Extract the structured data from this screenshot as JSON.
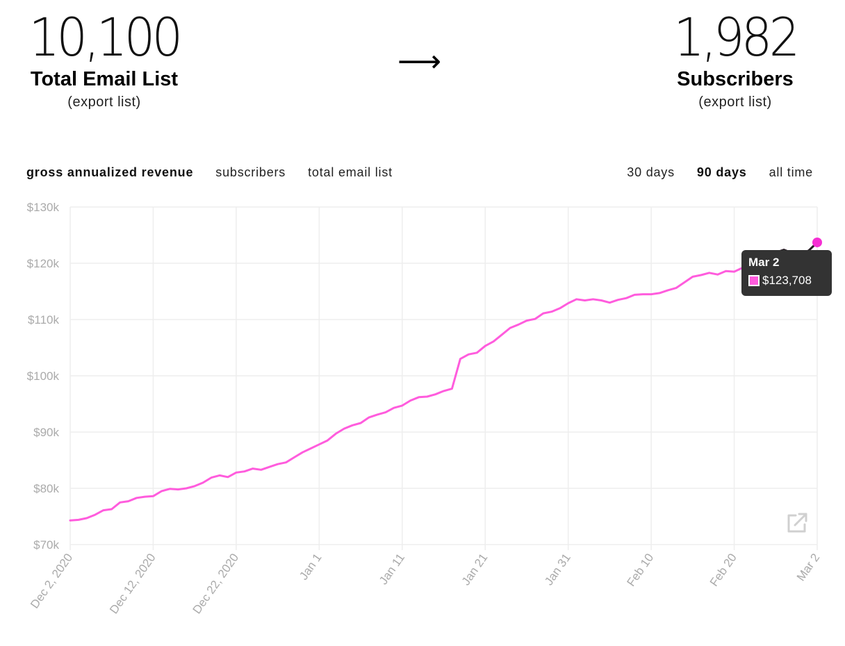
{
  "header": {
    "left": {
      "number": "10,100",
      "label": "Total Email List",
      "sub": "(export list)"
    },
    "right": {
      "number": "1,982",
      "label": "Subscribers",
      "sub": "(export list)"
    },
    "arrow": "⟶"
  },
  "metric_tabs": [
    {
      "label": "gross annualized revenue",
      "active": true
    },
    {
      "label": "subscribers",
      "active": false
    },
    {
      "label": "total email list",
      "active": false
    }
  ],
  "range_tabs": [
    {
      "label": "30 days",
      "active": false
    },
    {
      "label": "90 days",
      "active": true
    },
    {
      "label": "all time",
      "active": false
    }
  ],
  "tooltip": {
    "date": "Mar 2",
    "value": "$123,708"
  },
  "colors": {
    "line": "#ff5cdd",
    "grid": "#eeeeee",
    "axis_text": "#aaaaaa",
    "tooltip_bg": "#333333"
  },
  "chart_data": {
    "type": "line",
    "title": "",
    "xlabel": "",
    "ylabel": "",
    "ylim": [
      70000,
      130000
    ],
    "yticks": [
      70000,
      80000,
      90000,
      100000,
      110000,
      120000,
      130000
    ],
    "ytick_labels": [
      "$70k",
      "$80k",
      "$90k",
      "$100k",
      "$110k",
      "$120k",
      "$130k"
    ],
    "xlim": [
      0,
      90
    ],
    "xticks": [
      0,
      10,
      20,
      30,
      40,
      50,
      60,
      70,
      80,
      90
    ],
    "xtick_labels": [
      "Dec 2, 2020",
      "Dec 12, 2020",
      "Dec 22, 2020",
      "Jan 1",
      "Jan 11",
      "Jan 21",
      "Jan 31",
      "Feb 10",
      "Feb 20",
      "Mar 2"
    ],
    "series": [
      {
        "name": "gross annualized revenue",
        "x": [
          0,
          1,
          2,
          3,
          4,
          5,
          6,
          7,
          8,
          9,
          10,
          11,
          12,
          13,
          14,
          15,
          16,
          17,
          18,
          19,
          20,
          21,
          22,
          23,
          24,
          25,
          26,
          27,
          28,
          29,
          30,
          31,
          32,
          33,
          34,
          35,
          36,
          37,
          38,
          39,
          40,
          41,
          42,
          43,
          44,
          45,
          46,
          47,
          48,
          49,
          50,
          51,
          52,
          53,
          54,
          55,
          56,
          57,
          58,
          59,
          60,
          61,
          62,
          63,
          64,
          65,
          66,
          67,
          68,
          69,
          70,
          71,
          72,
          73,
          74,
          75,
          76,
          77,
          78,
          79,
          80,
          81,
          82,
          83,
          84,
          85,
          86,
          87,
          88,
          89,
          90
        ],
        "values": [
          74300,
          74400,
          74700,
          75300,
          76100,
          76300,
          77500,
          77700,
          78300,
          78500,
          78600,
          79500,
          79900,
          79800,
          80000,
          80400,
          81000,
          81900,
          82300,
          82000,
          82800,
          83000,
          83500,
          83300,
          83800,
          84300,
          84600,
          85500,
          86400,
          87100,
          87800,
          88500,
          89700,
          90600,
          91200,
          91600,
          92600,
          93100,
          93500,
          94300,
          94700,
          95600,
          96200,
          96300,
          96700,
          97300,
          97700,
          103000,
          103800,
          104100,
          105300,
          106100,
          107300,
          108500,
          109100,
          109800,
          110100,
          111100,
          111400,
          112000,
          112900,
          113600,
          113400,
          113600,
          113400,
          113000,
          113500,
          113800,
          114400,
          114500,
          114500,
          114700,
          115200,
          115600,
          116600,
          117600,
          117900,
          118300,
          118000,
          118600,
          118500,
          119200,
          119900,
          120500,
          121300,
          121900,
          122400,
          121800,
          121400,
          122300,
          123708
        ]
      }
    ]
  }
}
